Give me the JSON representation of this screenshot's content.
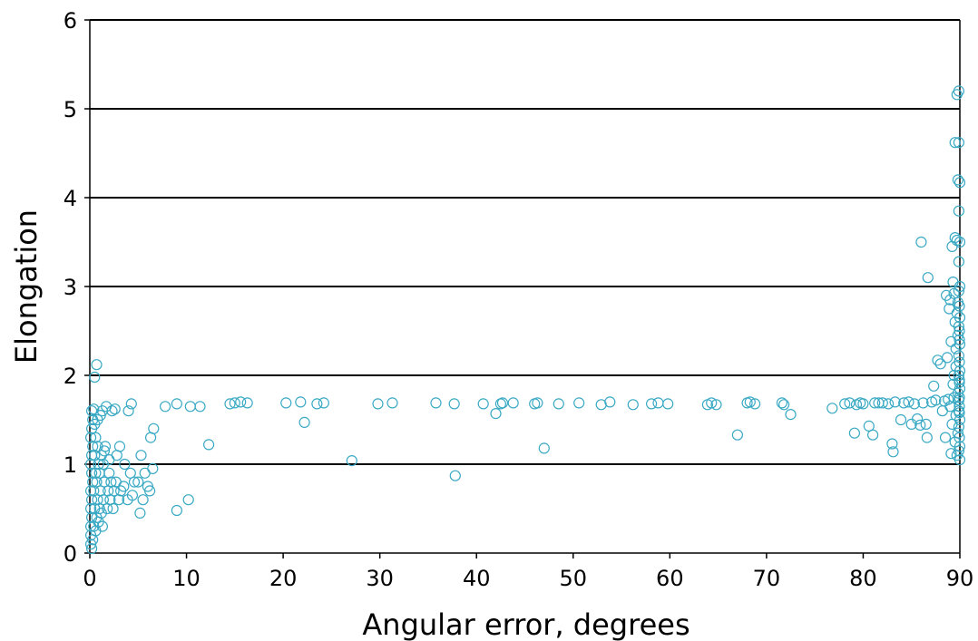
{
  "chart_data": {
    "type": "scatter",
    "title": "",
    "xlabel": "Angular error, degrees",
    "ylabel": "Elongation",
    "xlim": [
      0,
      90
    ],
    "ylim": [
      0,
      6
    ],
    "xticks": [
      0,
      10,
      20,
      30,
      40,
      50,
      60,
      70,
      80,
      90
    ],
    "yticks": [
      0,
      1,
      2,
      3,
      4,
      5,
      6
    ],
    "grid": "horizontal",
    "marker": "open-circle",
    "marker_color": "#3aa9c4",
    "series": [
      {
        "points": [
          [
            0.1,
            0.1
          ],
          [
            0.1,
            0.2
          ],
          [
            0.1,
            0.3
          ],
          [
            0.2,
            0.4
          ],
          [
            0.1,
            0.5
          ],
          [
            0.2,
            0.6
          ],
          [
            0.1,
            0.7
          ],
          [
            0.3,
            0.8
          ],
          [
            0.2,
            0.9
          ],
          [
            0.1,
            1.0
          ],
          [
            0.2,
            1.1
          ],
          [
            0.3,
            1.2
          ],
          [
            0.1,
            1.3
          ],
          [
            0.2,
            1.4
          ],
          [
            0.3,
            1.5
          ],
          [
            0.2,
            1.6
          ],
          [
            0.4,
            0.3
          ],
          [
            0.5,
            0.5
          ],
          [
            0.4,
            0.7
          ],
          [
            0.6,
            0.9
          ],
          [
            0.5,
            1.1
          ],
          [
            0.6,
            1.3
          ],
          [
            0.7,
            0.4
          ],
          [
            0.8,
            0.6
          ],
          [
            0.7,
            0.8
          ],
          [
            0.9,
            1.0
          ],
          [
            0.8,
            1.2
          ],
          [
            1.0,
            0.5
          ],
          [
            1.1,
            0.7
          ],
          [
            1.0,
            0.9
          ],
          [
            1.2,
            1.1
          ],
          [
            1.3,
            0.3
          ],
          [
            1.4,
            0.6
          ],
          [
            1.5,
            0.8
          ],
          [
            1.4,
            1.0
          ],
          [
            1.6,
            1.2
          ],
          [
            1.8,
            0.5
          ],
          [
            1.9,
            0.7
          ],
          [
            2.0,
            0.9
          ],
          [
            2.1,
            0.6
          ],
          [
            2.2,
            0.8
          ],
          [
            2.4,
            0.5
          ],
          [
            2.5,
            0.7
          ],
          [
            2.7,
            0.8
          ],
          [
            3.0,
            0.6
          ],
          [
            3.2,
            0.7
          ],
          [
            3.5,
            0.75
          ],
          [
            0.3,
            0.15
          ],
          [
            0.6,
            0.25
          ],
          [
            0.9,
            0.35
          ],
          [
            1.2,
            0.45
          ],
          [
            0.2,
            0.05
          ],
          [
            0.5,
            1.45
          ],
          [
            0.8,
            1.5
          ],
          [
            1.1,
            1.55
          ],
          [
            0.4,
            1.62
          ],
          [
            1.3,
            1.6
          ],
          [
            1.7,
            1.65
          ],
          [
            2.3,
            1.6
          ],
          [
            2.6,
            1.62
          ],
          [
            0.7,
            2.12
          ],
          [
            0.5,
            1.98
          ],
          [
            1.5,
            1.15
          ],
          [
            2.0,
            1.05
          ],
          [
            2.8,
            1.1
          ],
          [
            3.1,
            1.2
          ],
          [
            3.6,
            1.0
          ],
          [
            3.9,
            0.6
          ],
          [
            4.2,
            0.9
          ],
          [
            4.6,
            0.8
          ],
          [
            4.4,
            0.65
          ],
          [
            5.0,
            0.8
          ],
          [
            5.3,
            1.1
          ],
          [
            5.7,
            0.9
          ],
          [
            6.0,
            0.75
          ],
          [
            6.3,
            1.3
          ],
          [
            6.6,
            1.4
          ],
          [
            4.0,
            1.6
          ],
          [
            4.3,
            1.68
          ],
          [
            5.2,
            0.45
          ],
          [
            5.5,
            0.6
          ],
          [
            6.5,
            0.95
          ],
          [
            6.2,
            0.7
          ],
          [
            9.0,
            0.48
          ],
          [
            10.2,
            0.6
          ],
          [
            7.8,
            1.65
          ],
          [
            9.0,
            1.68
          ],
          [
            10.4,
            1.65
          ],
          [
            11.4,
            1.65
          ],
          [
            12.3,
            1.22
          ],
          [
            14.5,
            1.68
          ],
          [
            15.0,
            1.69
          ],
          [
            15.6,
            1.7
          ],
          [
            16.3,
            1.69
          ],
          [
            20.3,
            1.69
          ],
          [
            21.8,
            1.7
          ],
          [
            22.2,
            1.47
          ],
          [
            23.5,
            1.68
          ],
          [
            24.2,
            1.69
          ],
          [
            27.1,
            1.04
          ],
          [
            29.8,
            1.68
          ],
          [
            31.3,
            1.69
          ],
          [
            35.8,
            1.69
          ],
          [
            37.7,
            1.68
          ],
          [
            37.8,
            0.87
          ],
          [
            40.7,
            1.68
          ],
          [
            42.0,
            1.57
          ],
          [
            42.5,
            1.68
          ],
          [
            42.7,
            1.69
          ],
          [
            43.8,
            1.69
          ],
          [
            46.0,
            1.68
          ],
          [
            46.3,
            1.69
          ],
          [
            47.0,
            1.18
          ],
          [
            48.5,
            1.68
          ],
          [
            50.6,
            1.69
          ],
          [
            52.9,
            1.67
          ],
          [
            53.8,
            1.7
          ],
          [
            56.2,
            1.67
          ],
          [
            58.1,
            1.68
          ],
          [
            58.8,
            1.69
          ],
          [
            59.8,
            1.68
          ],
          [
            63.9,
            1.67
          ],
          [
            64.3,
            1.69
          ],
          [
            64.8,
            1.67
          ],
          [
            67.0,
            1.33
          ],
          [
            68.0,
            1.69
          ],
          [
            68.3,
            1.7
          ],
          [
            68.8,
            1.68
          ],
          [
            71.6,
            1.69
          ],
          [
            71.8,
            1.67
          ],
          [
            72.5,
            1.56
          ],
          [
            76.8,
            1.63
          ],
          [
            78.1,
            1.68
          ],
          [
            78.6,
            1.69
          ],
          [
            79.1,
            1.35
          ],
          [
            79.3,
            1.67
          ],
          [
            79.7,
            1.69
          ],
          [
            80.0,
            1.68
          ],
          [
            80.6,
            1.43
          ],
          [
            81.0,
            1.33
          ],
          [
            81.2,
            1.69
          ],
          [
            81.6,
            1.69
          ],
          [
            82.0,
            1.69
          ],
          [
            82.6,
            1.68
          ],
          [
            83.0,
            1.23
          ],
          [
            83.1,
            1.14
          ],
          [
            83.3,
            1.7
          ],
          [
            83.9,
            1.5
          ],
          [
            84.2,
            1.69
          ],
          [
            84.7,
            1.7
          ],
          [
            85.0,
            1.45
          ],
          [
            85.3,
            1.68
          ],
          [
            85.6,
            1.51
          ],
          [
            85.9,
            1.44
          ],
          [
            86.0,
            3.5
          ],
          [
            86.2,
            1.69
          ],
          [
            86.5,
            1.45
          ],
          [
            86.6,
            1.3
          ],
          [
            86.7,
            3.1
          ],
          [
            87.1,
            1.7
          ],
          [
            87.3,
            1.88
          ],
          [
            87.5,
            1.72
          ],
          [
            87.7,
            2.17
          ],
          [
            88.0,
            2.13
          ],
          [
            88.2,
            1.6
          ],
          [
            88.4,
            1.71
          ],
          [
            88.5,
            1.3
          ],
          [
            88.6,
            2.9
          ],
          [
            88.7,
            2.2
          ],
          [
            88.8,
            1.73
          ],
          [
            88.9,
            2.75
          ],
          [
            89.0,
            1.65
          ],
          [
            89.0,
            2.85
          ],
          [
            89.1,
            1.12
          ],
          [
            89.1,
            2.38
          ],
          [
            89.2,
            1.45
          ],
          [
            89.2,
            3.45
          ],
          [
            89.3,
            1.9
          ],
          [
            89.3,
            3.05
          ],
          [
            89.4,
            2.0
          ],
          [
            89.4,
            2.92
          ],
          [
            89.4,
            1.75
          ],
          [
            89.5,
            3.55
          ],
          [
            89.5,
            4.62
          ],
          [
            89.5,
            1.25
          ],
          [
            89.5,
            2.6
          ],
          [
            89.6,
            2.1
          ],
          [
            89.6,
            1.55
          ],
          [
            89.6,
            2.3
          ],
          [
            89.7,
            1.1
          ],
          [
            89.7,
            5.16
          ],
          [
            89.7,
            2.7
          ],
          [
            89.7,
            3.52
          ],
          [
            89.8,
            1.8
          ],
          [
            89.8,
            4.2
          ],
          [
            89.8,
            2.45
          ],
          [
            89.8,
            1.35
          ],
          [
            89.8,
            2.82
          ],
          [
            89.9,
            5.2
          ],
          [
            89.9,
            1.6
          ],
          [
            89.9,
            3.28
          ],
          [
            89.9,
            2.0
          ],
          [
            89.9,
            2.55
          ],
          [
            89.9,
            1.15
          ],
          [
            89.9,
            3.85
          ],
          [
            89.9,
            2.22
          ],
          [
            89.9,
            1.72
          ],
          [
            89.9,
            2.95
          ],
          [
            89.9,
            1.42
          ],
          [
            89.9,
            4.62
          ],
          [
            90.0,
            1.2
          ],
          [
            90.0,
            1.5
          ],
          [
            90.0,
            1.85
          ],
          [
            90.0,
            2.05
          ],
          [
            90.0,
            2.35
          ],
          [
            90.0,
            2.65
          ],
          [
            90.0,
            3.0
          ],
          [
            90.0,
            3.5
          ],
          [
            90.0,
            4.17
          ],
          [
            90.0,
            1.05
          ],
          [
            89.95,
            1.65
          ],
          [
            89.95,
            1.92
          ],
          [
            89.95,
            2.15
          ],
          [
            89.95,
            2.5
          ],
          [
            89.95,
            2.78
          ],
          [
            89.95,
            1.3
          ],
          [
            89.95,
            1.58
          ],
          [
            89.95,
            1.95
          ],
          [
            89.95,
            2.4
          ],
          [
            89.95,
            1.75
          ]
        ]
      }
    ]
  }
}
